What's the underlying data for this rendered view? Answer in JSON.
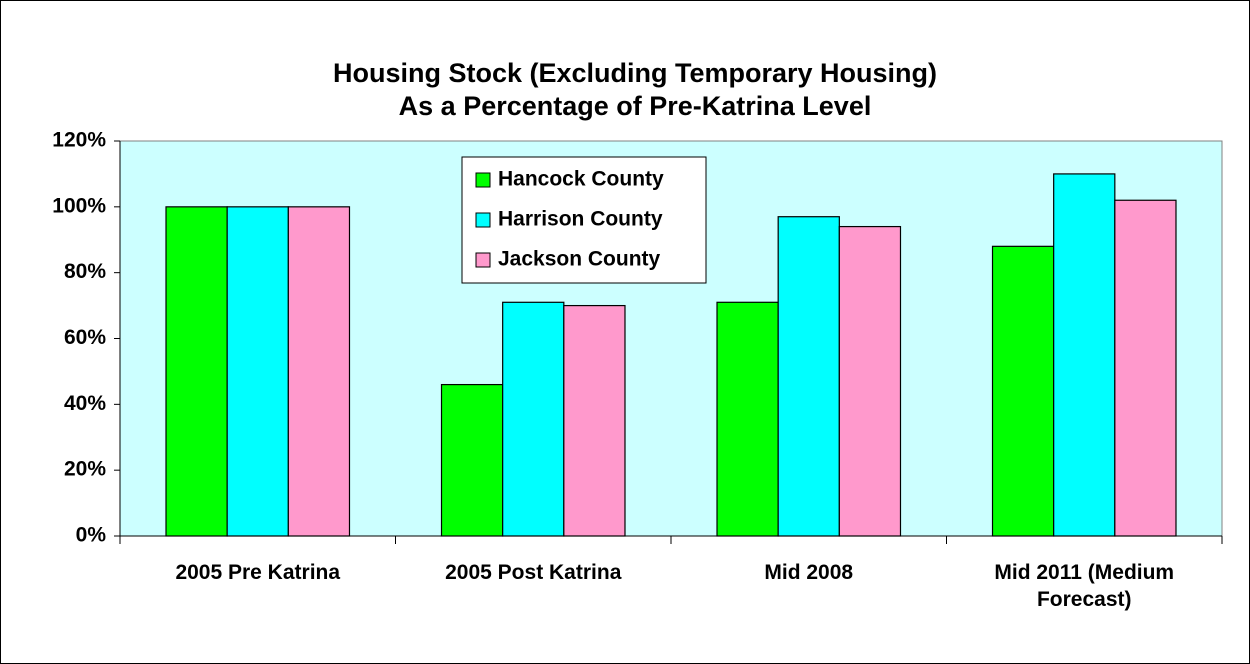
{
  "chart_data": {
    "type": "bar",
    "title": "Housing Stock (Excluding Temporary Housing)",
    "subtitle": "As a Percentage of Pre-Katrina Level",
    "categories": [
      "2005 Pre Katrina",
      "2005 Post Katrina",
      "Mid 2008",
      "Mid 2011 (Medium Forecast)"
    ],
    "series": [
      {
        "name": "Hancock County",
        "color": "#00ff00",
        "values": [
          100,
          46,
          71,
          88
        ]
      },
      {
        "name": "Harrison County",
        "color": "#00ffff",
        "values": [
          100,
          71,
          97,
          110
        ]
      },
      {
        "name": "Jackson County",
        "color": "#ff99cc",
        "values": [
          100,
          70,
          94,
          102
        ]
      }
    ],
    "ylim": [
      0,
      120
    ],
    "yticks": [
      {
        "value": 0,
        "label": "0%"
      },
      {
        "value": 20,
        "label": "20%"
      },
      {
        "value": 40,
        "label": "40%"
      },
      {
        "value": 60,
        "label": "60%"
      },
      {
        "value": 80,
        "label": "80%"
      },
      {
        "value": 100,
        "label": "100%"
      },
      {
        "value": 120,
        "label": "120%"
      }
    ],
    "grid": false,
    "legend": "top",
    "plot_background": "#ccffff"
  }
}
